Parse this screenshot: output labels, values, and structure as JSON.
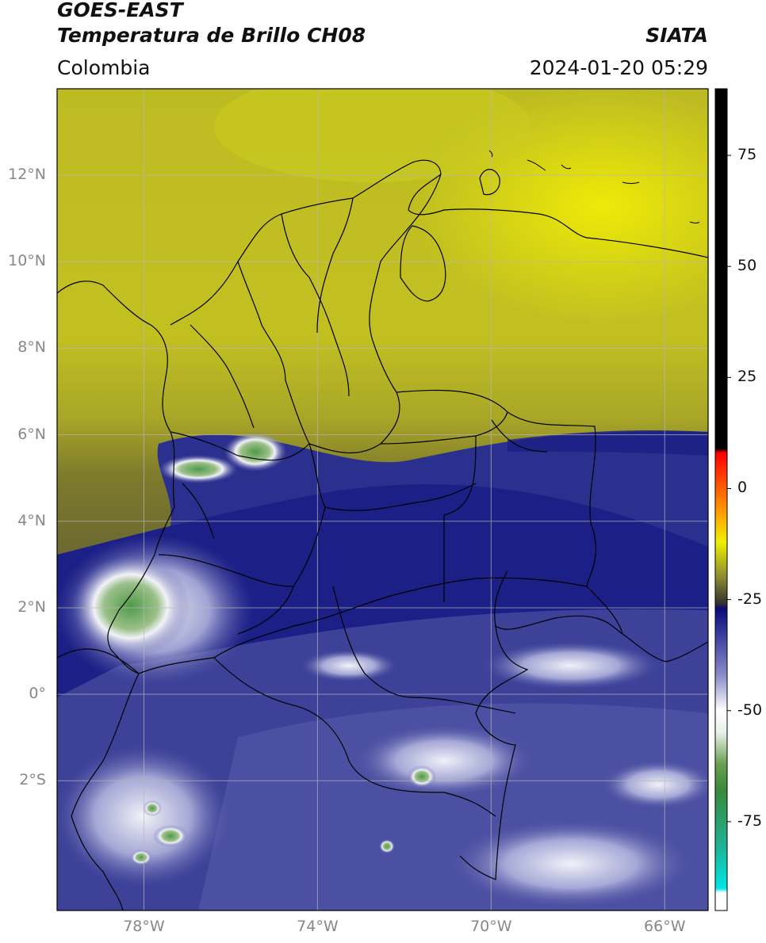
{
  "header": {
    "title_line1": "GOES-EAST",
    "title_line2": "Temperatura de Brillo CH08",
    "brand": "SIATA",
    "region": "Colombia",
    "timestamp": "2024-01-20 05:29"
  },
  "map": {
    "extent": {
      "lon_min": -80,
      "lon_max": -65,
      "lat_min": -5,
      "lat_max": 14
    },
    "lat_ticks": [
      {
        "lat": 12,
        "label": "12°N"
      },
      {
        "lat": 10,
        "label": "10°N"
      },
      {
        "lat": 8,
        "label": "8°N"
      },
      {
        "lat": 6,
        "label": "6°N"
      },
      {
        "lat": 4,
        "label": "4°N"
      },
      {
        "lat": 2,
        "label": "2°N"
      },
      {
        "lat": 0,
        "label": "0°"
      },
      {
        "lat": -2,
        "label": "2°S"
      }
    ],
    "lon_ticks": [
      {
        "lon": -78,
        "label": "78°W"
      },
      {
        "lon": -74,
        "label": "74°W"
      },
      {
        "lon": -70,
        "label": "70°W"
      },
      {
        "lon": -66,
        "label": "66°W"
      }
    ],
    "colors": {
      "yellow_high": "#e8e40a",
      "yellow": "#c9c720",
      "olive": "#8f8c2a",
      "olive_dark": "#6e6b30",
      "navy": "#1c1f86",
      "blue": "#3b3f9a",
      "blue_light": "#7a7fbd",
      "white": "#f2f2f8",
      "green": "#4f9a4a",
      "border": "#000000"
    }
  },
  "colorbar": {
    "vmin": -95,
    "vmax": 90,
    "ticks": [
      {
        "value": 75,
        "label": "75"
      },
      {
        "value": 50,
        "label": "50"
      },
      {
        "value": 25,
        "label": "25"
      },
      {
        "value": 0,
        "label": "0"
      },
      {
        "value": -25,
        "label": "-25"
      },
      {
        "value": -50,
        "label": "-50"
      },
      {
        "value": -75,
        "label": "-75"
      }
    ],
    "stops": [
      {
        "value": -95,
        "color": "#ffffff"
      },
      {
        "value": -91,
        "color": "#ffffff"
      },
      {
        "value": -90,
        "color": "#00e6e6"
      },
      {
        "value": -80,
        "color": "#20b090"
      },
      {
        "value": -68,
        "color": "#3a8a3a"
      },
      {
        "value": -62,
        "color": "#6aa050"
      },
      {
        "value": -55,
        "color": "#e8f0e8"
      },
      {
        "value": -50,
        "color": "#ffffff"
      },
      {
        "value": -42,
        "color": "#8a8cc8"
      },
      {
        "value": -33,
        "color": "#3a3e9e"
      },
      {
        "value": -27,
        "color": "#0a0a78"
      },
      {
        "value": -26,
        "color": "#303030"
      },
      {
        "value": -20,
        "color": "#8a8a30"
      },
      {
        "value": -12,
        "color": "#f0f000"
      },
      {
        "value": -5,
        "color": "#ff9900"
      },
      {
        "value": 8,
        "color": "#ff0000"
      },
      {
        "value": 9,
        "color": "#000000"
      },
      {
        "value": 90,
        "color": "#000000"
      }
    ]
  }
}
